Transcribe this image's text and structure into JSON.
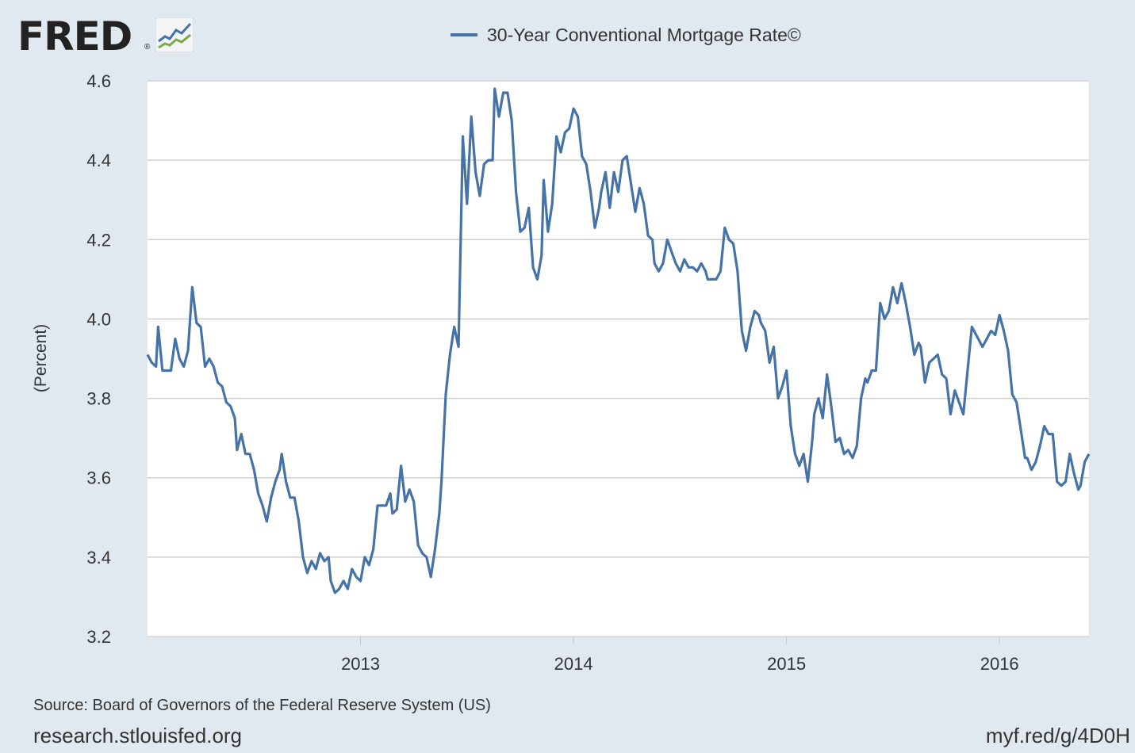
{
  "header": {
    "logo_text": "FRED",
    "logo_reg": "®",
    "logo_icon": "fred-chart-logo-icon"
  },
  "footer": {
    "source": "Source: Board of Governors of the Federal Reserve System (US)",
    "site": "research.stlouisfed.org",
    "short_url": "myf.red/g/4D0H"
  },
  "colors": {
    "background": "#e1e9f0",
    "plot_background": "#ffffff",
    "series": "#4572a7",
    "grid": "#d0d0d0"
  },
  "chart_data": {
    "type": "line",
    "title": "",
    "xlabel": "",
    "ylabel": "(Percent)",
    "ylim": [
      3.2,
      4.6
    ],
    "yticks": [
      "3.2",
      "3.4",
      "3.6",
      "3.8",
      "4.0",
      "4.2",
      "4.4",
      "4.6"
    ],
    "xlim": [
      2012.0,
      2016.42
    ],
    "xticks": [
      "2013",
      "2014",
      "2015",
      "2016"
    ],
    "grid": true,
    "legend": "top-center",
    "series": [
      {
        "name": "30-Year Conventional Mortgage Rate©",
        "points": [
          [
            2012.0,
            3.91
          ],
          [
            2012.02,
            3.89
          ],
          [
            2012.04,
            3.88
          ],
          [
            2012.05,
            3.98
          ],
          [
            2012.07,
            3.87
          ],
          [
            2012.09,
            3.87
          ],
          [
            2012.11,
            3.87
          ],
          [
            2012.13,
            3.95
          ],
          [
            2012.15,
            3.9
          ],
          [
            2012.17,
            3.88
          ],
          [
            2012.19,
            3.92
          ],
          [
            2012.21,
            4.08
          ],
          [
            2012.23,
            3.99
          ],
          [
            2012.25,
            3.98
          ],
          [
            2012.27,
            3.88
          ],
          [
            2012.29,
            3.9
          ],
          [
            2012.31,
            3.88
          ],
          [
            2012.33,
            3.84
          ],
          [
            2012.35,
            3.83
          ],
          [
            2012.37,
            3.79
          ],
          [
            2012.39,
            3.78
          ],
          [
            2012.41,
            3.75
          ],
          [
            2012.42,
            3.67
          ],
          [
            2012.44,
            3.71
          ],
          [
            2012.46,
            3.66
          ],
          [
            2012.48,
            3.66
          ],
          [
            2012.5,
            3.62
          ],
          [
            2012.52,
            3.56
          ],
          [
            2012.54,
            3.53
          ],
          [
            2012.56,
            3.49
          ],
          [
            2012.58,
            3.55
          ],
          [
            2012.6,
            3.59
          ],
          [
            2012.62,
            3.62
          ],
          [
            2012.63,
            3.66
          ],
          [
            2012.65,
            3.59
          ],
          [
            2012.67,
            3.55
          ],
          [
            2012.69,
            3.55
          ],
          [
            2012.71,
            3.49
          ],
          [
            2012.73,
            3.4
          ],
          [
            2012.75,
            3.36
          ],
          [
            2012.77,
            3.39
          ],
          [
            2012.79,
            3.37
          ],
          [
            2012.81,
            3.41
          ],
          [
            2012.83,
            3.39
          ],
          [
            2012.85,
            3.4
          ],
          [
            2012.86,
            3.34
          ],
          [
            2012.88,
            3.31
          ],
          [
            2012.9,
            3.32
          ],
          [
            2012.92,
            3.34
          ],
          [
            2012.94,
            3.32
          ],
          [
            2012.96,
            3.37
          ],
          [
            2012.98,
            3.35
          ],
          [
            2013.0,
            3.34
          ],
          [
            2013.02,
            3.4
          ],
          [
            2013.04,
            3.38
          ],
          [
            2013.06,
            3.42
          ],
          [
            2013.08,
            3.53
          ],
          [
            2013.1,
            3.53
          ],
          [
            2013.12,
            3.53
          ],
          [
            2013.14,
            3.56
          ],
          [
            2013.15,
            3.51
          ],
          [
            2013.17,
            3.52
          ],
          [
            2013.19,
            3.63
          ],
          [
            2013.21,
            3.54
          ],
          [
            2013.23,
            3.57
          ],
          [
            2013.25,
            3.54
          ],
          [
            2013.27,
            3.43
          ],
          [
            2013.29,
            3.41
          ],
          [
            2013.31,
            3.4
          ],
          [
            2013.33,
            3.35
          ],
          [
            2013.35,
            3.42
          ],
          [
            2013.37,
            3.51
          ],
          [
            2013.38,
            3.59
          ],
          [
            2013.4,
            3.81
          ],
          [
            2013.42,
            3.91
          ],
          [
            2013.44,
            3.98
          ],
          [
            2013.46,
            3.93
          ],
          [
            2013.48,
            4.46
          ],
          [
            2013.5,
            4.29
          ],
          [
            2013.52,
            4.51
          ],
          [
            2013.54,
            4.37
          ],
          [
            2013.56,
            4.31
          ],
          [
            2013.58,
            4.39
          ],
          [
            2013.6,
            4.4
          ],
          [
            2013.62,
            4.4
          ],
          [
            2013.63,
            4.58
          ],
          [
            2013.65,
            4.51
          ],
          [
            2013.67,
            4.57
          ],
          [
            2013.69,
            4.57
          ],
          [
            2013.71,
            4.5
          ],
          [
            2013.73,
            4.32
          ],
          [
            2013.75,
            4.22
          ],
          [
            2013.77,
            4.23
          ],
          [
            2013.79,
            4.28
          ],
          [
            2013.81,
            4.13
          ],
          [
            2013.83,
            4.1
          ],
          [
            2013.85,
            4.16
          ],
          [
            2013.86,
            4.35
          ],
          [
            2013.88,
            4.22
          ],
          [
            2013.9,
            4.29
          ],
          [
            2013.92,
            4.46
          ],
          [
            2013.94,
            4.42
          ],
          [
            2013.96,
            4.47
          ],
          [
            2013.98,
            4.48
          ],
          [
            2014.0,
            4.53
          ],
          [
            2014.02,
            4.51
          ],
          [
            2014.04,
            4.41
          ],
          [
            2014.06,
            4.39
          ],
          [
            2014.08,
            4.32
          ],
          [
            2014.1,
            4.23
          ],
          [
            2014.12,
            4.28
          ],
          [
            2014.13,
            4.32
          ],
          [
            2014.15,
            4.37
          ],
          [
            2014.17,
            4.28
          ],
          [
            2014.19,
            4.37
          ],
          [
            2014.21,
            4.32
          ],
          [
            2014.23,
            4.4
          ],
          [
            2014.25,
            4.41
          ],
          [
            2014.27,
            4.34
          ],
          [
            2014.29,
            4.27
          ],
          [
            2014.31,
            4.33
          ],
          [
            2014.33,
            4.29
          ],
          [
            2014.35,
            4.21
          ],
          [
            2014.37,
            4.2
          ],
          [
            2014.38,
            4.14
          ],
          [
            2014.4,
            4.12
          ],
          [
            2014.42,
            4.14
          ],
          [
            2014.44,
            4.2
          ],
          [
            2014.46,
            4.17
          ],
          [
            2014.48,
            4.14
          ],
          [
            2014.5,
            4.12
          ],
          [
            2014.52,
            4.15
          ],
          [
            2014.54,
            4.13
          ],
          [
            2014.56,
            4.13
          ],
          [
            2014.58,
            4.12
          ],
          [
            2014.6,
            4.14
          ],
          [
            2014.62,
            4.12
          ],
          [
            2014.63,
            4.1
          ],
          [
            2014.65,
            4.1
          ],
          [
            2014.67,
            4.1
          ],
          [
            2014.69,
            4.12
          ],
          [
            2014.71,
            4.23
          ],
          [
            2014.73,
            4.2
          ],
          [
            2014.75,
            4.19
          ],
          [
            2014.77,
            4.12
          ],
          [
            2014.79,
            3.97
          ],
          [
            2014.81,
            3.92
          ],
          [
            2014.83,
            3.98
          ],
          [
            2014.85,
            4.02
          ],
          [
            2014.87,
            4.01
          ],
          [
            2014.88,
            3.99
          ],
          [
            2014.9,
            3.97
          ],
          [
            2014.92,
            3.89
          ],
          [
            2014.94,
            3.93
          ],
          [
            2014.96,
            3.8
          ],
          [
            2014.98,
            3.83
          ],
          [
            2015.0,
            3.87
          ],
          [
            2015.02,
            3.73
          ],
          [
            2015.04,
            3.66
          ],
          [
            2015.06,
            3.63
          ],
          [
            2015.08,
            3.66
          ],
          [
            2015.1,
            3.59
          ],
          [
            2015.12,
            3.69
          ],
          [
            2015.13,
            3.76
          ],
          [
            2015.15,
            3.8
          ],
          [
            2015.17,
            3.75
          ],
          [
            2015.19,
            3.86
          ],
          [
            2015.21,
            3.78
          ],
          [
            2015.23,
            3.69
          ],
          [
            2015.25,
            3.7
          ],
          [
            2015.27,
            3.66
          ],
          [
            2015.29,
            3.67
          ],
          [
            2015.31,
            3.65
          ],
          [
            2015.33,
            3.68
          ],
          [
            2015.35,
            3.8
          ],
          [
            2015.37,
            3.85
          ],
          [
            2015.38,
            3.84
          ],
          [
            2015.4,
            3.87
          ],
          [
            2015.42,
            3.87
          ],
          [
            2015.44,
            4.04
          ],
          [
            2015.46,
            4.0
          ],
          [
            2015.48,
            4.02
          ],
          [
            2015.5,
            4.08
          ],
          [
            2015.52,
            4.04
          ],
          [
            2015.54,
            4.09
          ],
          [
            2015.56,
            4.04
          ],
          [
            2015.58,
            3.98
          ],
          [
            2015.6,
            3.91
          ],
          [
            2015.62,
            3.94
          ],
          [
            2015.63,
            3.93
          ],
          [
            2015.65,
            3.84
          ],
          [
            2015.67,
            3.89
          ],
          [
            2015.69,
            3.9
          ],
          [
            2015.71,
            3.91
          ],
          [
            2015.73,
            3.86
          ],
          [
            2015.75,
            3.85
          ],
          [
            2015.77,
            3.76
          ],
          [
            2015.79,
            3.82
          ],
          [
            2015.81,
            3.79
          ],
          [
            2015.83,
            3.76
          ],
          [
            2015.85,
            3.87
          ],
          [
            2015.87,
            3.98
          ],
          [
            2015.88,
            3.97
          ],
          [
            2015.9,
            3.95
          ],
          [
            2015.92,
            3.93
          ],
          [
            2015.94,
            3.95
          ],
          [
            2015.96,
            3.97
          ],
          [
            2015.98,
            3.96
          ],
          [
            2016.0,
            4.01
          ],
          [
            2016.02,
            3.97
          ],
          [
            2016.04,
            3.92
          ],
          [
            2016.06,
            3.81
          ],
          [
            2016.08,
            3.79
          ],
          [
            2016.1,
            3.72
          ],
          [
            2016.12,
            3.65
          ],
          [
            2016.13,
            3.65
          ],
          [
            2016.15,
            3.62
          ],
          [
            2016.17,
            3.64
          ],
          [
            2016.19,
            3.68
          ],
          [
            2016.21,
            3.73
          ],
          [
            2016.23,
            3.71
          ],
          [
            2016.25,
            3.71
          ],
          [
            2016.27,
            3.59
          ],
          [
            2016.29,
            3.58
          ],
          [
            2016.31,
            3.59
          ],
          [
            2016.33,
            3.66
          ],
          [
            2016.35,
            3.61
          ],
          [
            2016.37,
            3.57
          ],
          [
            2016.38,
            3.58
          ],
          [
            2016.4,
            3.64
          ],
          [
            2016.42,
            3.66
          ]
        ]
      }
    ]
  }
}
